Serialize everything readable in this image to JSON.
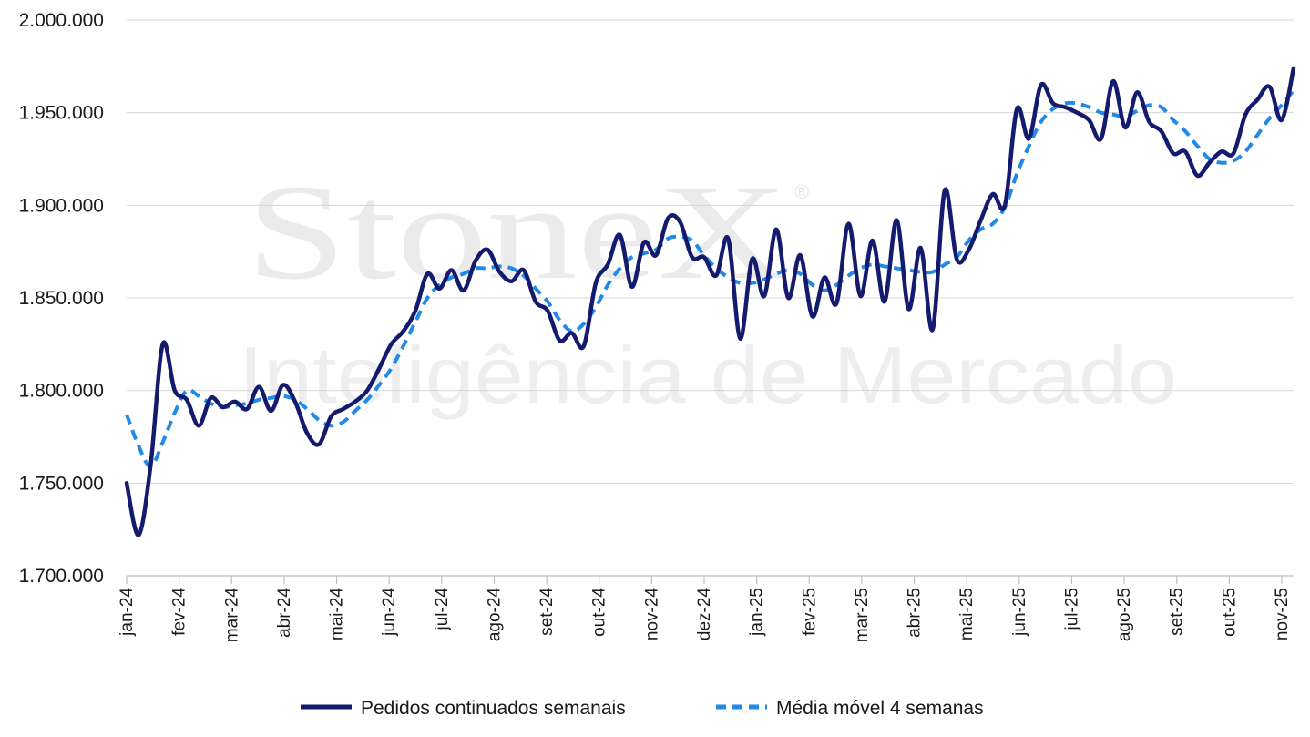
{
  "watermark": {
    "brand": "StoneX",
    "reg": "®",
    "tagline": "Inteligência de Mercado"
  },
  "colors": {
    "series_main": "#141b6e",
    "series_avg": "#2189e8",
    "grid": "#d6d6d6",
    "axis": "#bfbfbf"
  },
  "chart_data": {
    "type": "line",
    "ylim": [
      1700000,
      2000000
    ],
    "y_ticks": [
      1700000,
      1750000,
      1800000,
      1850000,
      1900000,
      1950000,
      2000000
    ],
    "y_tick_labels": [
      "1.700.000",
      "1.750.000",
      "1.800.000",
      "1.850.000",
      "1.900.000",
      "1.950.000",
      "2.000.000"
    ],
    "x_tick_labels": [
      "jan-24",
      "fev-24",
      "mar-24",
      "abr-24",
      "mai-24",
      "jun-24",
      "jul-24",
      "ago-24",
      "set-24",
      "out-24",
      "nov-24",
      "dez-24",
      "jan-25",
      "fev-25",
      "mar-25",
      "abr-25",
      "mai-25",
      "jun-25",
      "jul-25",
      "ago-25",
      "set-25",
      "out-25",
      "nov-25"
    ],
    "grid": true,
    "legend_position": "bottom",
    "series": [
      {
        "name": "Pedidos continuados semanais",
        "style": "solid",
        "values": [
          1750000,
          1722000,
          1760000,
          1825000,
          1800000,
          1795000,
          1781000,
          1796000,
          1791000,
          1794000,
          1790000,
          1802000,
          1789000,
          1803000,
          1794000,
          1777000,
          1771000,
          1786000,
          1790000,
          1794000,
          1800000,
          1812000,
          1825000,
          1832000,
          1843000,
          1863000,
          1855000,
          1865000,
          1854000,
          1870000,
          1876000,
          1864000,
          1859000,
          1865000,
          1848000,
          1843000,
          1827000,
          1831000,
          1824000,
          1858000,
          1868000,
          1884000,
          1856000,
          1880000,
          1873000,
          1893000,
          1891000,
          1872000,
          1872000,
          1862000,
          1882000,
          1828000,
          1871000,
          1851000,
          1887000,
          1850000,
          1873000,
          1840000,
          1861000,
          1847000,
          1890000,
          1851000,
          1881000,
          1848000,
          1892000,
          1844000,
          1877000,
          1833000,
          1908000,
          1871000,
          1876000,
          1892000,
          1906000,
          1900000,
          1952000,
          1936000,
          1965000,
          1955000,
          1953000,
          1950000,
          1946000,
          1936000,
          1967000,
          1942000,
          1961000,
          1945000,
          1940000,
          1928000,
          1929000,
          1916000,
          1923000,
          1929000,
          1928000,
          1949000,
          1957000,
          1964000,
          1946000,
          1974000
        ]
      },
      {
        "name": "Média móvel 4 semanas",
        "style": "dashed",
        "values": [
          1787000,
          1770000,
          1759000,
          1772000,
          1788000,
          1800000,
          1797000,
          1793000,
          1791000,
          1792000,
          1793000,
          1795000,
          1796000,
          1797000,
          1795000,
          1790000,
          1784000,
          1781000,
          1783000,
          1789000,
          1795000,
          1803000,
          1812000,
          1824000,
          1837000,
          1850000,
          1857000,
          1861000,
          1863000,
          1866000,
          1866000,
          1867000,
          1866000,
          1862000,
          1855000,
          1848000,
          1838000,
          1832000,
          1836000,
          1845000,
          1857000,
          1866000,
          1872000,
          1874000,
          1876000,
          1882000,
          1883000,
          1881000,
          1873000,
          1866000,
          1861000,
          1858000,
          1858000,
          1860000,
          1863000,
          1865000,
          1863000,
          1857000,
          1854000,
          1857000,
          1862000,
          1866000,
          1868000,
          1867000,
          1866000,
          1865000,
          1864000,
          1864000,
          1868000,
          1872000,
          1881000,
          1887000,
          1890000,
          1899000,
          1917000,
          1932000,
          1945000,
          1952000,
          1955000,
          1955000,
          1953000,
          1950000,
          1949000,
          1948000,
          1951000,
          1954000,
          1953000,
          1946000,
          1940000,
          1932000,
          1925000,
          1923000,
          1924000,
          1929000,
          1938000,
          1947000,
          1954000,
          1962000
        ]
      }
    ]
  }
}
